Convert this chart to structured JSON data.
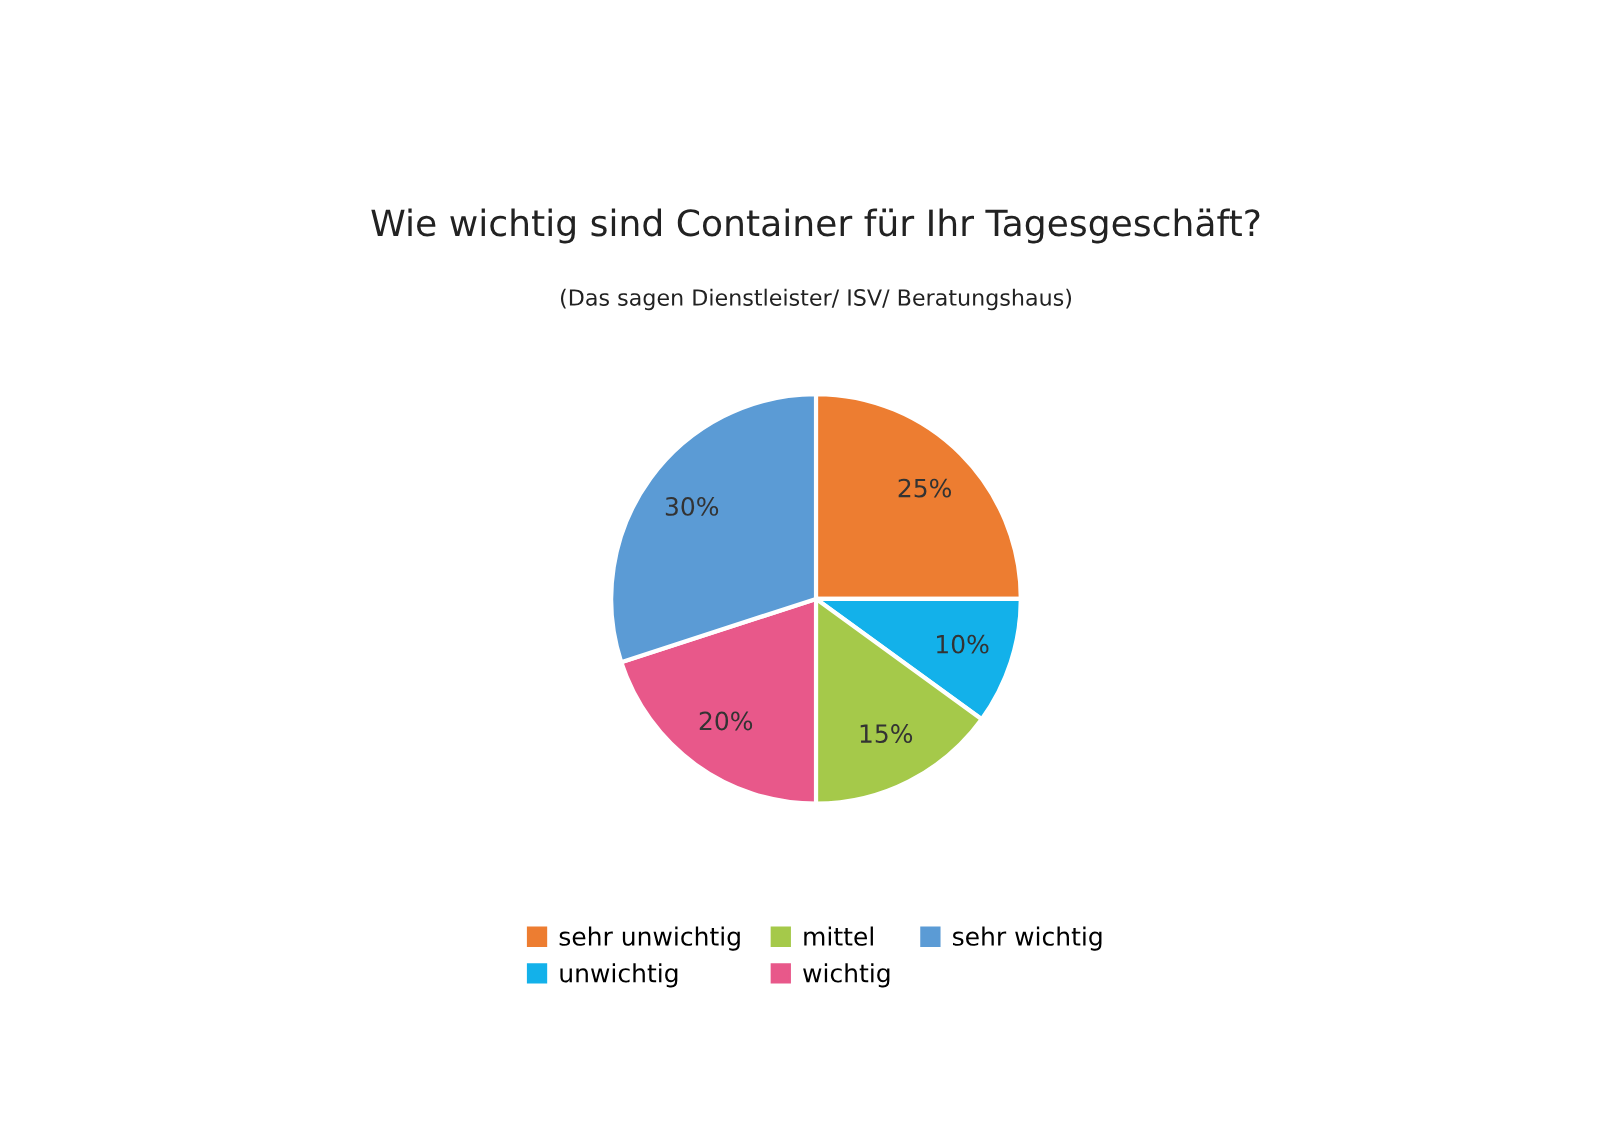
{
  "chart_data": {
    "type": "pie",
    "title": "Wie wichtig sind Container für Ihr Tagesgeschäft?",
    "subtitle": "(Das sagen Dienstleister/ ISV/ Beratungshaus)",
    "categories": [
      "sehr unwichtig",
      "unwichtig",
      "mittel",
      "wichtig",
      "sehr wichtig"
    ],
    "values": [
      25,
      10,
      15,
      20,
      30
    ],
    "colors": [
      "#ed7d31",
      "#13b1ea",
      "#a5c94a",
      "#e8588a",
      "#5b9bd5"
    ],
    "value_labels": [
      "25%",
      "10%",
      "15%",
      "20%",
      "30%"
    ],
    "legend": "bottom"
  }
}
